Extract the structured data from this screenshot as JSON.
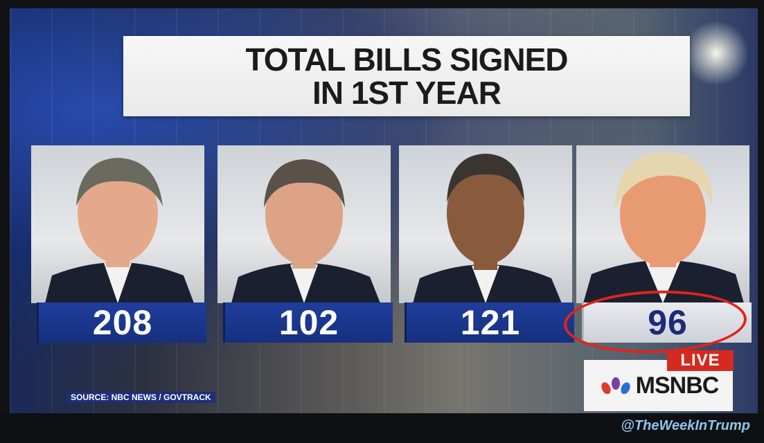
{
  "graphic": {
    "title_line1": "TOTAL BILLS SIGNED",
    "title_line2": "IN 1ST YEAR",
    "cards": [
      {
        "value": "208",
        "suit_color": "#1b2030",
        "hair_color": "#6b6a5f",
        "skin_color": "#e3a98a"
      },
      {
        "value": "102",
        "suit_color": "#1b2030",
        "hair_color": "#5a5248",
        "skin_color": "#dca386"
      },
      {
        "value": "121",
        "suit_color": "#1b2030",
        "hair_color": "#3a3530",
        "skin_color": "#8a5a3c"
      },
      {
        "value": "96",
        "suit_color": "#1b2030",
        "hair_color": "#e6d6b0",
        "skin_color": "#e89a72",
        "highlighted": true
      }
    ],
    "source": "SOURCE: NBC NEWS / GOVTRACK"
  },
  "broadcast": {
    "live_label": "LIVE",
    "network": "MSNBC"
  },
  "watermark": "@TheWeekInTrump",
  "colors": {
    "bar_blue": "#1f3e9c",
    "highlight_ring": "#e0241c",
    "live_red": "#d42a20"
  }
}
